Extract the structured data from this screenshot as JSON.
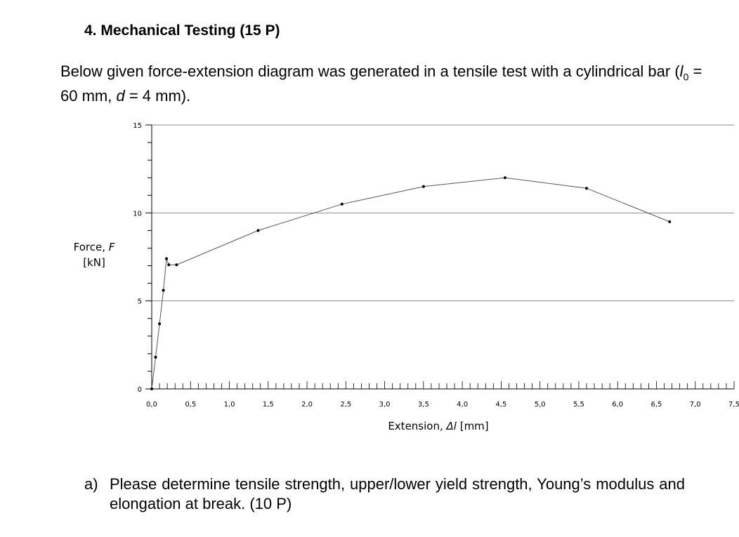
{
  "problem": {
    "heading": "4. Mechanical Testing (15 P)",
    "intro": {
      "text_before": "Below given force-extension diagram was generated in a tensile test with a cylindrical bar (",
      "l_symbol": "l",
      "l_subscript": "0",
      "l_value": " = 60 mm, ",
      "d_symbol": "d",
      "d_value": " = 4 mm)."
    },
    "question": {
      "letter": "a)",
      "text": "Please determine tensile strength, upper/lower yield strength, Young’s modulus and elongation at break. (10 P)"
    }
  },
  "chart_data": {
    "type": "line",
    "title": "",
    "xlabel": {
      "prefix": "Extension, ",
      "symbol": "Δl",
      "unit": " [mm]"
    },
    "ylabel": {
      "prefix": "Force, ",
      "symbol": "F",
      "unit": "[kN]"
    },
    "xlim": [
      0,
      7.5
    ],
    "ylim": [
      0,
      15
    ],
    "x_ticks": [
      "0,0",
      "0,5",
      "1,0",
      "1,5",
      "2,0",
      "2,5",
      "3,0",
      "3,5",
      "4,0",
      "4,5",
      "5,0",
      "5,5",
      "6,0",
      "6,5",
      "7,0",
      "7,5"
    ],
    "y_ticks": [
      "0",
      "5",
      "10",
      "15"
    ],
    "x_minor_step": 0.1,
    "y_minor_step": 1,
    "gridlines_y": [
      5,
      10,
      15
    ],
    "series": [
      {
        "x": [
          0,
          0.05,
          0.1,
          0.15,
          0.19,
          0.22,
          0.32,
          1.37,
          2.45,
          3.5,
          4.55,
          5.6,
          6.67
        ],
        "y": [
          0,
          1.8,
          3.7,
          5.6,
          7.4,
          7.05,
          7.05,
          9.0,
          10.5,
          11.5,
          12.0,
          11.4,
          9.5
        ]
      }
    ],
    "colors": {
      "line": "#555555",
      "marker": "#000000",
      "grid": "#888888",
      "axis": "#000000"
    }
  }
}
